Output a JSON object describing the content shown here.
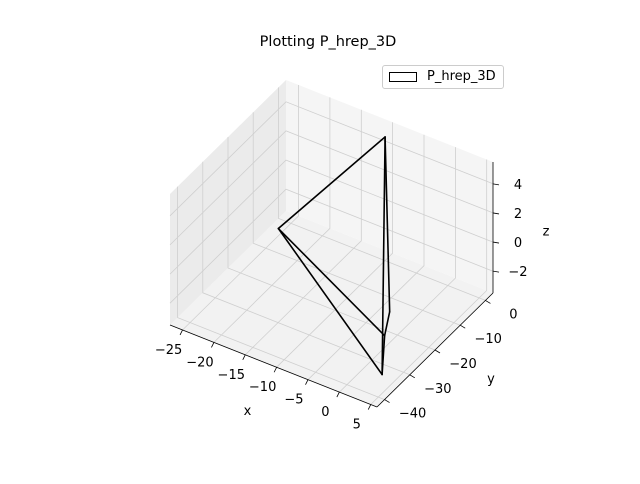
{
  "chart_data": {
    "type": "3d-polyhedron",
    "title": "Plotting P_hrep_3D",
    "legend": {
      "entries": [
        "P_hrep_3D"
      ],
      "placement": "upper-right"
    },
    "grid": true,
    "xlabel": "x",
    "ylabel": "y",
    "zlabel": "z",
    "xticks": [
      -25,
      -20,
      -15,
      -10,
      -5,
      0,
      5
    ],
    "yticks": [
      0,
      -10,
      -20,
      -30,
      -40
    ],
    "zticks": [
      4,
      2,
      0,
      -2
    ],
    "xlim": [
      -27,
      6
    ],
    "ylim": [
      -43,
      3
    ],
    "zlim": [
      -3.5,
      5.5
    ],
    "series": [
      {
        "name": "P_hrep_3D",
        "vertices": [
          {
            "id": "apex",
            "x": -10,
            "y": 0,
            "z": 5
          },
          {
            "id": "left",
            "x": -25,
            "y": -5,
            "z": -3
          },
          {
            "id": "right1",
            "x": 4,
            "y": -33,
            "z": 1
          },
          {
            "id": "right2",
            "x": 4,
            "y": -35,
            "z": -0.3
          },
          {
            "id": "right3",
            "x": 4,
            "y": -36,
            "z": -2.8
          }
        ],
        "edges": [
          [
            "apex",
            "left"
          ],
          [
            "apex",
            "right1"
          ],
          [
            "apex",
            "right3"
          ],
          [
            "left",
            "right2"
          ],
          [
            "left",
            "right3"
          ],
          [
            "right1",
            "right2"
          ],
          [
            "right2",
            "right3"
          ]
        ]
      }
    ]
  }
}
